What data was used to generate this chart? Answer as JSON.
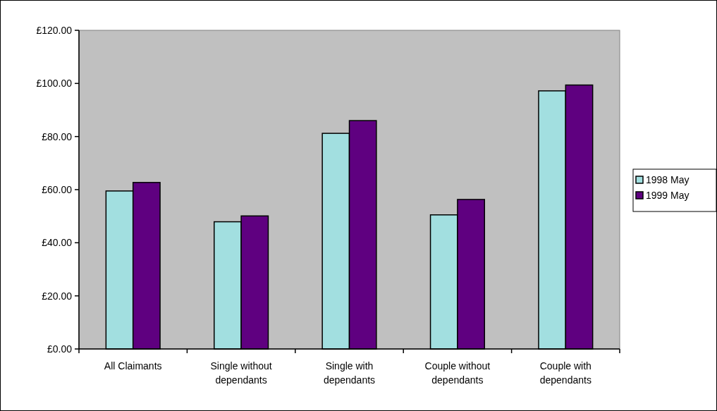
{
  "chart_data": {
    "type": "bar",
    "categories": [
      "All Claimants",
      "Single without dependants",
      "Single with dependants",
      "Couple without dependants",
      "Couple with dependants"
    ],
    "series": [
      {
        "name": "1998 May",
        "color": "#a2dfe0",
        "values": [
          59.5,
          47.9,
          81.2,
          50.5,
          97.2
        ]
      },
      {
        "name": "1999 May",
        "color": "#5f0080",
        "values": [
          62.7,
          50.1,
          86.0,
          56.3,
          99.4
        ]
      }
    ],
    "ylim": [
      0,
      120
    ],
    "yticks": [
      {
        "value": 0,
        "label": "£0.00"
      },
      {
        "value": 20,
        "label": "£20.00"
      },
      {
        "value": 40,
        "label": "£40.00"
      },
      {
        "value": 60,
        "label": "£60.00"
      },
      {
        "value": 80,
        "label": "£80.00"
      },
      {
        "value": 100,
        "label": "£100.00"
      },
      {
        "value": 120,
        "label": "£120.00"
      }
    ],
    "grid": false,
    "legend": "right"
  }
}
